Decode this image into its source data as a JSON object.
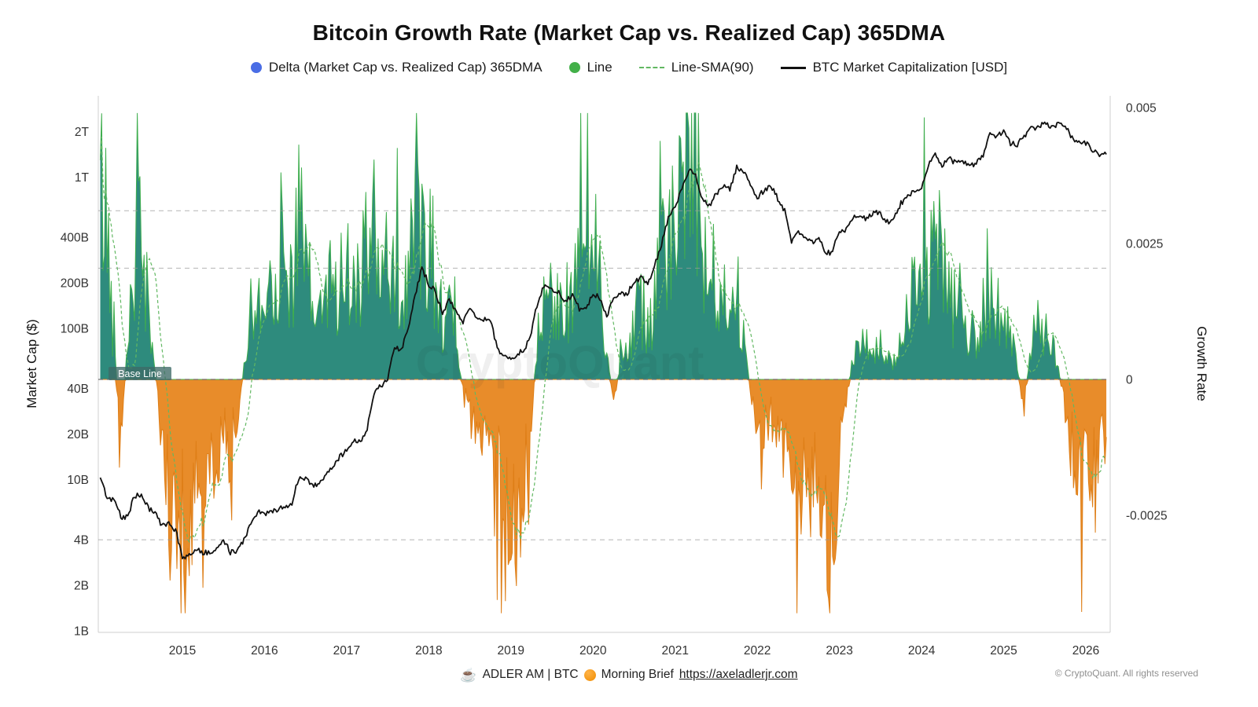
{
  "title": "Bitcoin Growth Rate (Market Cap vs. Realized Cap) 365DMA",
  "watermark": "CryptoQuant",
  "legend": {
    "items": [
      {
        "label": "Delta (Market Cap vs. Realized Cap) 365DMA",
        "marker": "dot",
        "color": "#4a6de5"
      },
      {
        "label": "Line",
        "marker": "dot",
        "color": "#43b049"
      },
      {
        "label": "Line-SMA(90)",
        "marker": "dash",
        "color": "#62b862"
      },
      {
        "label": "BTC Market Capitalization [USD]",
        "marker": "solid",
        "color": "#111111"
      }
    ]
  },
  "footer": {
    "coffee_icon": "☕",
    "brand": "ADLER AM | BTC",
    "brief": "Morning Brief",
    "link": "https://axeladlerjr.com",
    "copyright": "© CryptoQuant. All rights reserved"
  },
  "chart_data": {
    "type": "area",
    "title": "Bitcoin Growth Rate (Market Cap vs. Realized Cap) 365DMA",
    "x_start_year": 2014.0,
    "x_step_months": 1,
    "x_axis": {
      "ticks": [
        2015,
        2016,
        2017,
        2018,
        2019,
        2020,
        2021,
        2022,
        2023,
        2024,
        2025,
        2026
      ]
    },
    "left_axis": {
      "label": "Market Cap ($)",
      "scale": "log",
      "unit": "USD",
      "ticks": [
        {
          "label": "2T",
          "billions": 2000
        },
        {
          "label": "1T",
          "billions": 1000
        },
        {
          "label": "400B",
          "billions": 400
        },
        {
          "label": "200B",
          "billions": 200
        },
        {
          "label": "100B",
          "billions": 100
        },
        {
          "label": "40B",
          "billions": 40
        },
        {
          "label": "20B",
          "billions": 20
        },
        {
          "label": "10B",
          "billions": 10
        },
        {
          "label": "4B",
          "billions": 4
        },
        {
          "label": "2B",
          "billions": 2
        },
        {
          "label": "1B",
          "billions": 1
        }
      ]
    },
    "right_axis": {
      "label": "Growth Rate",
      "ticks": [
        "0.005",
        "0.0025",
        "0",
        "-0.0025"
      ],
      "tick_values": [
        0.005,
        0.0025,
        0,
        -0.0025
      ]
    },
    "baseline": {
      "label": "Base Line",
      "value": 0
    },
    "reference_lines_billions": [
      600,
      250,
      4
    ],
    "render_hints": {
      "seed": 42,
      "upsample_per_month": 5,
      "delta_spike_ratio": 0.6,
      "mcap_daily_volatility": 0.04
    },
    "series": [
      {
        "name": "Delta (Market Cap vs. Realized Cap) 365DMA",
        "axis": "right",
        "style": "area",
        "positive_fill": "#2e8b7d",
        "positive_stroke": "#3fae4e",
        "negative_fill": "#e88c2a",
        "negative_stroke": "#de7e17",
        "monthly_values": [
          0.0036,
          0.0028,
          0.0006,
          -0.0013,
          0.0008,
          0.0022,
          0.0025,
          0.0013,
          0.0002,
          -0.001,
          -0.0022,
          -0.003,
          -0.0031,
          -0.0029,
          -0.0019,
          -0.0026,
          -0.0016,
          -0.0017,
          -0.0008,
          -0.0013,
          -0.0007,
          0.0002,
          0.0012,
          0.0014,
          0.0013,
          0.002,
          0.0022,
          0.0019,
          0.0021,
          0.0028,
          0.0022,
          0.0012,
          0.0013,
          0.0015,
          0.0016,
          0.0019,
          0.002,
          0.0018,
          0.0022,
          0.0016,
          0.0028,
          0.0022,
          0.0012,
          0.002,
          0.0014,
          0.0018,
          0.0022,
          0.0034,
          0.003,
          0.0018,
          0.0012,
          0.0011,
          0.0006,
          -0.0002,
          -0.0004,
          -0.0009,
          -0.0007,
          -0.0008,
          -0.0016,
          -0.0032,
          -0.003,
          -0.0024,
          -0.0016,
          -0.0006,
          0.0008,
          0.0014,
          0.0019,
          0.0016,
          0.0008,
          0.0014,
          0.002,
          0.0024,
          0.0026,
          0.002,
          0.0006,
          -0.0005,
          0.0004,
          0.0008,
          0.001,
          0.0014,
          0.0011,
          0.0014,
          0.002,
          0.0028,
          0.0035,
          0.0043,
          0.0047,
          0.0039,
          0.0028,
          0.0016,
          0.001,
          0.0014,
          0.0011,
          0.0013,
          0.0007,
          -0.0002,
          -0.0008,
          -0.0009,
          -0.0007,
          -0.0009,
          -0.0012,
          -0.0017,
          -0.0018,
          -0.0015,
          -0.0017,
          -0.0018,
          -0.0024,
          -0.0028,
          -0.0018,
          -0.0004,
          0.0004,
          0.0006,
          0.0006,
          0.0005,
          0.0006,
          0.0003,
          0.0003,
          0.0006,
          0.0012,
          0.0019,
          0.0022,
          0.002,
          0.0026,
          0.0021,
          0.0015,
          0.0013,
          0.001,
          0.0008,
          0.0009,
          0.0012,
          0.0017,
          0.0013,
          0.001,
          0.0008,
          0.0002,
          -0.0005,
          0.0006,
          0.001,
          0.0008,
          0.0006,
          0.0002,
          -0.0006,
          -0.0013,
          -0.0017,
          -0.0014,
          -0.0016,
          -0.0011,
          -0.0013
        ]
      },
      {
        "name": "Line-SMA(90)",
        "axis": "right",
        "style": "dashed-line",
        "color": "#62b862",
        "window_days": 90,
        "derived_from": "delta-series"
      },
      {
        "name": "BTC Market Capitalization [USD]",
        "axis": "left",
        "style": "line",
        "color": "#111111",
        "unit": "billion USD",
        "monthly_values": [
          10.2,
          7.6,
          7.3,
          5.7,
          5.6,
          7.8,
          7.9,
          6.5,
          6.0,
          4.9,
          5.1,
          4.6,
          3.0,
          3.2,
          3.5,
          3.3,
          3.3,
          3.4,
          4.0,
          3.3,
          3.4,
          4.0,
          5.0,
          6.2,
          5.9,
          6.1,
          6.4,
          6.6,
          7.0,
          10.2,
          10.3,
          9.1,
          9.5,
          10.9,
          11.8,
          14.2,
          15.5,
          18.0,
          17.8,
          21.0,
          37.0,
          42.0,
          45.0,
          75.0,
          72.0,
          100.0,
          160.0,
          250.0,
          195.0,
          175.0,
          120.0,
          155.0,
          130.0,
          110.0,
          135.0,
          120.0,
          115.0,
          112.0,
          72.0,
          66.0,
          63.0,
          68.0,
          72.0,
          95.0,
          150.0,
          200.0,
          180.0,
          172.0,
          150.0,
          165.0,
          135.0,
          131.0,
          170.0,
          158.0,
          118.0,
          158.0,
          174.0,
          168.0,
          205.0,
          215.0,
          199.0,
          255.0,
          360.0,
          540.0,
          620.0,
          840.0,
          1100.0,
          1030.0,
          700.0,
          650.0,
          780.0,
          880.0,
          820.0,
          1160.0,
          1080.0,
          880.0,
          730.0,
          820.0,
          865.0,
          720.0,
          600.0,
          365.0,
          445.0,
          385.0,
          372.0,
          392.0,
          315.0,
          318.0,
          445.0,
          450.0,
          550.0,
          570.0,
          527.0,
          592.0,
          568.0,
          505.0,
          526.0,
          675.0,
          737.0,
          826.0,
          840.0,
          1200.0,
          1400.0,
          1190.0,
          1330.0,
          1240.0,
          1280.0,
          1160.0,
          1250.0,
          1380.0,
          1910.0,
          1850.0,
          2020.0,
          1670.0,
          1640.0,
          1880.0,
          2080.0,
          2130.0,
          2310.0,
          2150.0,
          2260.0,
          2200.0,
          1800.0,
          1750.0,
          1680.0,
          1520.0,
          1390.0,
          1430.0
        ]
      }
    ]
  }
}
